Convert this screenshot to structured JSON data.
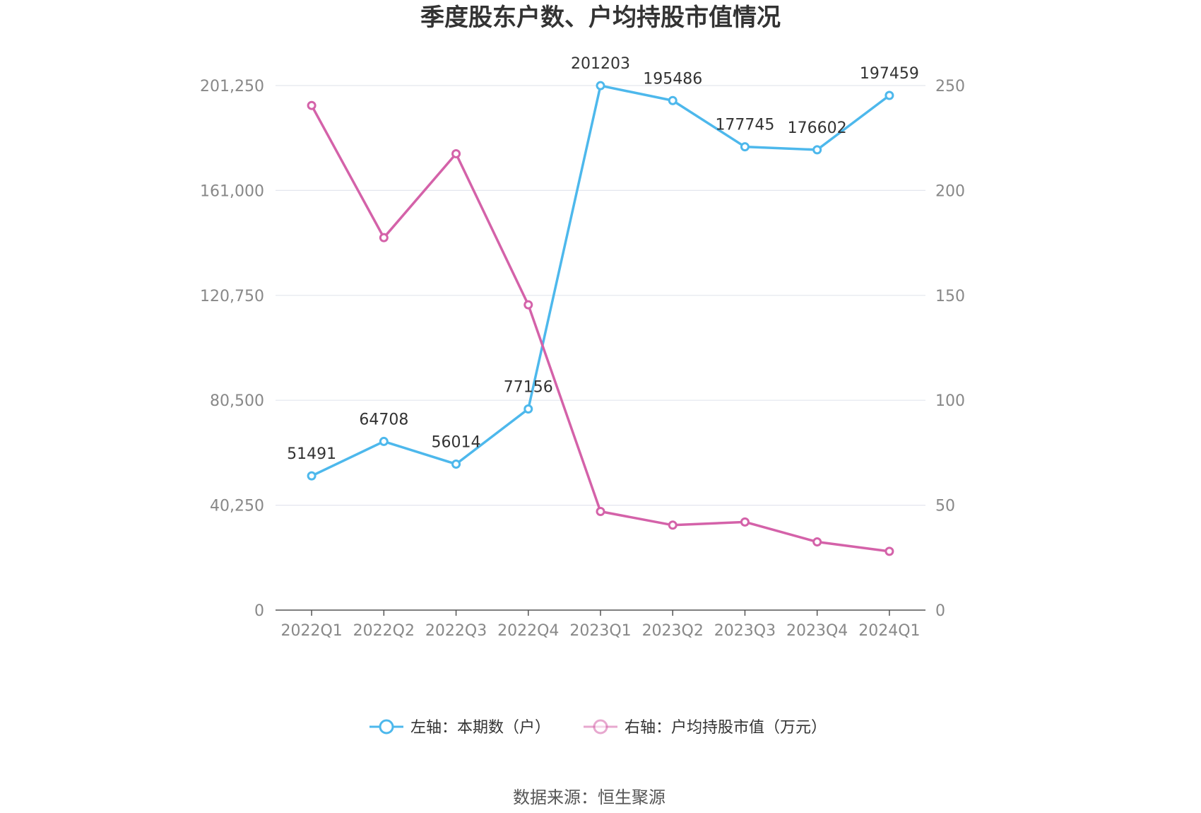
{
  "chart_data": {
    "type": "line",
    "title": "季度股东户数、户均持股市值情况",
    "categories": [
      "2022Q1",
      "2022Q2",
      "2022Q3",
      "2022Q4",
      "2023Q1",
      "2023Q2",
      "2023Q3",
      "2023Q4",
      "2024Q1"
    ],
    "left_axis": {
      "ylim": [
        0,
        201250
      ],
      "ticks": [
        0,
        40250,
        80500,
        120750,
        161000,
        201250
      ],
      "tick_labels": [
        "0",
        "40,250",
        "80,500",
        "120,750",
        "161,000",
        "201,250"
      ]
    },
    "right_axis": {
      "ylim": [
        0,
        250
      ],
      "ticks": [
        0,
        50,
        100,
        150,
        200,
        250
      ],
      "tick_labels": [
        "0",
        "50",
        "100",
        "150",
        "200",
        "250"
      ]
    },
    "series": [
      {
        "name": "左轴：本期数（户）",
        "axis": "left",
        "color": "#4db8ec",
        "values": [
          51491,
          64708,
          56014,
          77156,
          201203,
          195486,
          177745,
          176602,
          197459
        ],
        "labels": [
          "51491",
          "64708",
          "56014",
          "77156",
          "201203",
          "195486",
          "177745",
          "176602",
          "197459"
        ]
      },
      {
        "name": "右轴：户均持股市值（万元）",
        "axis": "right",
        "color": "#d462a9",
        "values": [
          240.5,
          177.5,
          217.5,
          145.5,
          47,
          40.5,
          42,
          32.5,
          28
        ]
      }
    ],
    "grid": true,
    "legend_position": "bottom"
  },
  "source": "数据来源：恒生聚源"
}
